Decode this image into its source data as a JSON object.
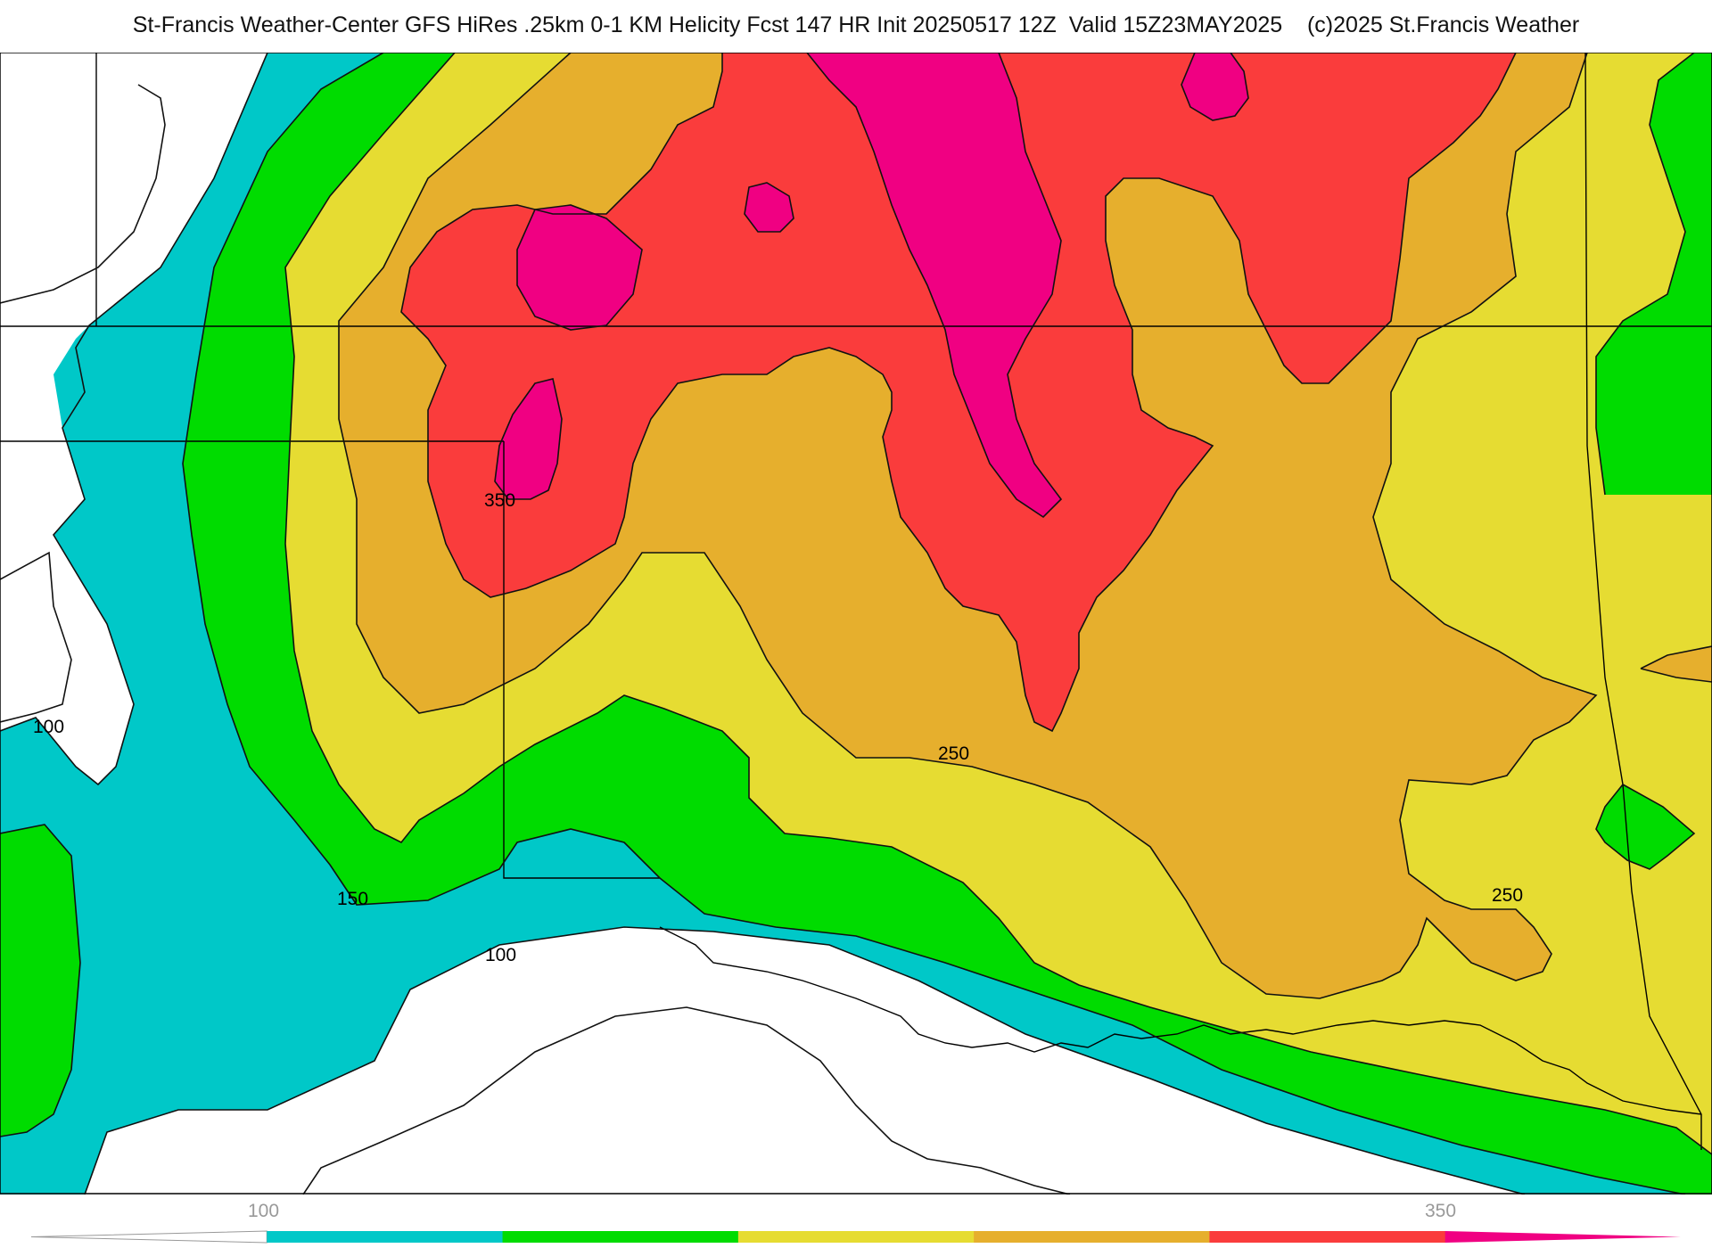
{
  "title": "St-Francis Weather-Center GFS HiRes .25km 0-1 KM Helicity Fcst 147 HR Init 20250517 12Z  Valid 15Z23MAY2025    (c)2025 St.Francis Weather",
  "contour_labels": [
    "350",
    "100",
    "250",
    "150",
    "100",
    "250"
  ],
  "colorbar": {
    "tick_labels": [
      "100",
      "350"
    ],
    "bins": [
      {
        "name": "below-100",
        "color": "#ffffff"
      },
      {
        "name": "100-150",
        "color": "#00c8c8"
      },
      {
        "name": "150-200",
        "color": "#00dc00"
      },
      {
        "name": "200-250",
        "color": "#e6dc32"
      },
      {
        "name": "250-300",
        "color": "#e6af2d"
      },
      {
        "name": "300-350",
        "color": "#fa3c3c"
      },
      {
        "name": "350-plus",
        "color": "#f00082"
      }
    ]
  }
}
